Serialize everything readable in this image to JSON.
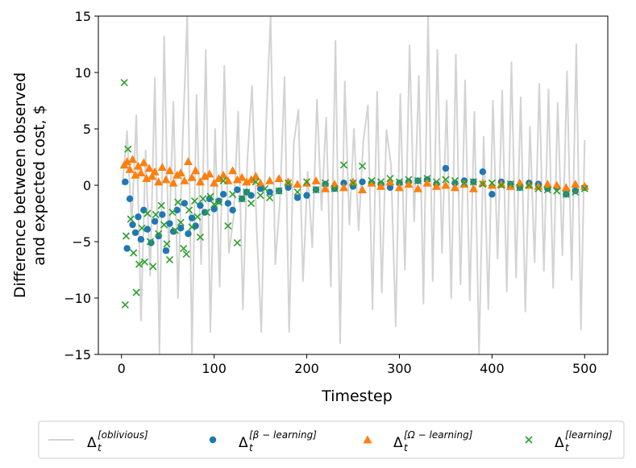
{
  "chart_data": {
    "type": "scatter",
    "title": "",
    "xlabel": "Timestep",
    "ylabel_lines": [
      "Difference between observed",
      "and expected cost, $"
    ],
    "xlim": [
      -25,
      525
    ],
    "ylim": [
      -15,
      15
    ],
    "xticks": [
      0,
      100,
      200,
      300,
      400,
      500
    ],
    "xtick_labels": [
      "0",
      "100",
      "200",
      "300",
      "400",
      "500"
    ],
    "yticks": [
      -15,
      -10,
      -5,
      0,
      5,
      10,
      15
    ],
    "ytick_labels": [
      "−15",
      "−10",
      "−5",
      "0",
      "5",
      "10",
      "15"
    ],
    "grid": false,
    "legend_position": "bottom-outside",
    "colors": {
      "oblivious": "#d3d3d3",
      "beta": "#1f77b4",
      "omega": "#ff7f0e",
      "learning": "#2ca02c"
    },
    "series": [
      {
        "name": "oblivious",
        "legend_main": "Δ",
        "legend_sub": "t",
        "legend_sup": "[oblivious]",
        "marker": "line",
        "x": [
          1,
          6,
          11,
          16,
          21,
          26,
          31,
          36,
          41,
          46,
          51,
          56,
          61,
          66,
          71,
          76,
          81,
          86,
          91,
          96,
          101,
          106,
          111,
          116,
          121,
          126,
          131,
          136,
          141,
          146,
          151,
          156,
          161,
          166,
          171,
          176,
          181,
          186,
          191,
          196,
          201,
          206,
          211,
          216,
          221,
          226,
          231,
          236,
          241,
          246,
          251,
          256,
          261,
          266,
          271,
          276,
          281,
          286,
          291,
          296,
          301,
          306,
          311,
          316,
          321,
          326,
          331,
          336,
          341,
          346,
          351,
          356,
          361,
          366,
          371,
          376,
          381,
          386,
          391,
          396,
          401,
          406,
          411,
          416,
          421,
          426,
          431,
          436,
          441,
          446,
          451,
          456,
          461,
          466,
          471,
          476,
          481,
          486,
          491,
          496,
          500
        ],
        "y": [
          0,
          4.8,
          -3.5,
          6.2,
          -12,
          3.1,
          -8,
          9.5,
          -15,
          13.2,
          -6,
          7.4,
          -10,
          4,
          15,
          -15,
          8,
          -7,
          12,
          -13,
          5,
          -9,
          10.6,
          -6,
          -2.8,
          6.5,
          -11,
          2.4,
          8.8,
          -4,
          -13,
          5.2,
          15,
          -7,
          -1.5,
          9.6,
          -13,
          3.8,
          6.7,
          -8.5,
          1.2,
          -5.5,
          7.6,
          -2.2,
          6,
          -9,
          12.8,
          -14,
          9.2,
          -3.5,
          5,
          -4,
          3.8,
          7.1,
          -11,
          8.3,
          -9.5,
          4.9,
          1.8,
          -12.5,
          8.1,
          -7.5,
          12.4,
          -3.2,
          9.7,
          -10.5,
          15,
          -8.5,
          12,
          -6,
          7.5,
          -10,
          11.6,
          -8.8,
          9.3,
          -10.2,
          6.5,
          -15,
          4.3,
          -11,
          7.5,
          -6.5,
          8.4,
          -9.4,
          10.9,
          -8.2,
          7.8,
          -11.2,
          5.2,
          -6.8,
          9,
          -7.6,
          8.5,
          -9.1,
          7.3,
          -6.2,
          10.1,
          -8.4,
          12.5,
          -12.8,
          4
        ]
      },
      {
        "name": "beta-learning",
        "legend_main": "Δ",
        "legend_sub": "t",
        "legend_sup": "[β − learning]",
        "marker": "circle",
        "x": [
          4,
          6,
          9,
          12,
          15,
          18,
          21,
          24,
          28,
          32,
          36,
          40,
          44,
          48,
          52,
          56,
          60,
          64,
          68,
          72,
          76,
          80,
          85,
          90,
          95,
          100,
          105,
          110,
          115,
          120,
          125,
          130,
          135,
          140,
          150,
          160,
          170,
          180,
          190,
          200,
          210,
          220,
          230,
          240,
          250,
          260,
          270,
          280,
          290,
          300,
          310,
          320,
          330,
          340,
          350,
          360,
          370,
          380,
          390,
          400,
          410,
          420,
          430,
          440,
          450,
          460,
          470,
          480,
          490,
          500
        ],
        "y": [
          0.3,
          -5.6,
          -1.2,
          -3.5,
          -4.2,
          -2.8,
          -4.8,
          -2.2,
          -3.9,
          -5.1,
          -3.2,
          -4.5,
          -2.6,
          -5.8,
          -3.4,
          -4.1,
          -2.2,
          -3.8,
          -1.6,
          -4.3,
          -2.9,
          -3.6,
          -1.8,
          -2.4,
          -1.2,
          -2.1,
          -1.4,
          -0.8,
          -1.6,
          -2.2,
          -0.4,
          -1.2,
          -0.6,
          -0.9,
          -0.3,
          -0.6,
          -0.5,
          -0.2,
          -1.1,
          -0.9,
          -0.4,
          0.1,
          -0.3,
          0.2,
          -0.1,
          0.3,
          0.2,
          0.1,
          -0.2,
          0.2,
          0.3,
          0.4,
          0.5,
          0.1,
          1.5,
          0.2,
          0.4,
          0.3,
          1.2,
          -0.8,
          0.3,
          0.1,
          -0.2,
          0.2,
          0.1,
          -0.3,
          -0.2,
          -0.8,
          -0.5,
          -0.2
        ]
      },
      {
        "name": "omega-learning",
        "legend_main": "Δ",
        "legend_sub": "t",
        "legend_sup": "[Ω − learning]",
        "marker": "triangle",
        "x": [
          3,
          6,
          9,
          12,
          15,
          18,
          21,
          24,
          27,
          30,
          33,
          36,
          40,
          44,
          48,
          52,
          56,
          60,
          64,
          68,
          72,
          76,
          80,
          85,
          90,
          95,
          100,
          105,
          110,
          115,
          120,
          125,
          130,
          135,
          140,
          145,
          150,
          160,
          170,
          180,
          190,
          200,
          210,
          220,
          230,
          240,
          250,
          260,
          270,
          280,
          290,
          300,
          310,
          320,
          330,
          340,
          350,
          360,
          370,
          380,
          390,
          400,
          410,
          420,
          430,
          440,
          450,
          460,
          470,
          480,
          490,
          500
        ],
        "y": [
          1.8,
          2.1,
          1.4,
          2.3,
          0.9,
          1.7,
          1.1,
          2.0,
          0.6,
          1.5,
          0.8,
          1.2,
          0.3,
          1.6,
          0.5,
          1.3,
          0.2,
          0.9,
          1.1,
          0.4,
          2.1,
          0.7,
          1.3,
          0.3,
          0.8,
          1.0,
          0.2,
          0.6,
          0.9,
          0.4,
          1.3,
          0.5,
          0.7,
          0.3,
          0.5,
          0.8,
          0.2,
          0.4,
          0.6,
          0.3,
          0.1,
          0.2,
          0.4,
          -0.3,
          0.1,
          -0.2,
          0.3,
          -0.4,
          0.2,
          -0.1,
          0.3,
          -0.2,
          0.1,
          -0.3,
          0.2,
          -0.1,
          0.0,
          -0.2,
          0.1,
          -0.3,
          0.2,
          0.0,
          0.1,
          -0.1,
          0.2,
          0.0,
          -0.1,
          0.1,
          0.0,
          -0.2,
          0.1,
          -0.1
        ]
      },
      {
        "name": "learning",
        "legend_main": "Δ",
        "legend_sub": "t",
        "legend_sup": "[learning]",
        "marker": "x",
        "x": [
          3,
          4,
          5,
          7,
          10,
          13,
          16,
          19,
          22,
          25,
          28,
          31,
          34,
          37,
          40,
          43,
          46,
          49,
          52,
          55,
          58,
          61,
          64,
          67,
          70,
          73,
          76,
          79,
          82,
          85,
          88,
          92,
          96,
          100,
          105,
          110,
          115,
          120,
          125,
          130,
          135,
          140,
          145,
          150,
          155,
          160,
          170,
          180,
          190,
          200,
          210,
          220,
          230,
          240,
          250,
          260,
          270,
          280,
          290,
          300,
          310,
          320,
          330,
          340,
          350,
          360,
          370,
          380,
          390,
          400,
          410,
          420,
          430,
          440,
          450,
          460,
          470,
          480,
          490,
          500
        ],
        "y": [
          9.1,
          -10.6,
          -4.5,
          3.2,
          -3.0,
          -6.0,
          -9.5,
          -7.0,
          -3.8,
          -6.8,
          -2.5,
          -5.0,
          -7.2,
          -2.6,
          -4.3,
          -1.8,
          -3.5,
          -5.2,
          -6.6,
          -2.4,
          -4.0,
          -1.5,
          -3.3,
          -5.6,
          -6.1,
          -2.2,
          -3.7,
          -1.4,
          -2.8,
          -4.6,
          -1.2,
          -2.4,
          -1.0,
          -1.7,
          -1.5,
          0.4,
          -3.6,
          -0.8,
          -5.1,
          -1.2,
          -0.6,
          -1.6,
          0.3,
          -0.9,
          -0.3,
          -1.1,
          -0.5,
          0.2,
          -0.6,
          0.3,
          -0.4,
          0.2,
          -0.3,
          1.8,
          0.2,
          1.7,
          0.4,
          0.3,
          0.6,
          0.3,
          0.5,
          0.4,
          0.6,
          0.3,
          0.5,
          0.4,
          0.2,
          0.3,
          0.1,
          0.2,
          0.0,
          0.1,
          -0.2,
          0.0,
          -0.3,
          -0.4,
          -0.5,
          -0.8,
          -0.6,
          -0.3
        ]
      }
    ]
  }
}
